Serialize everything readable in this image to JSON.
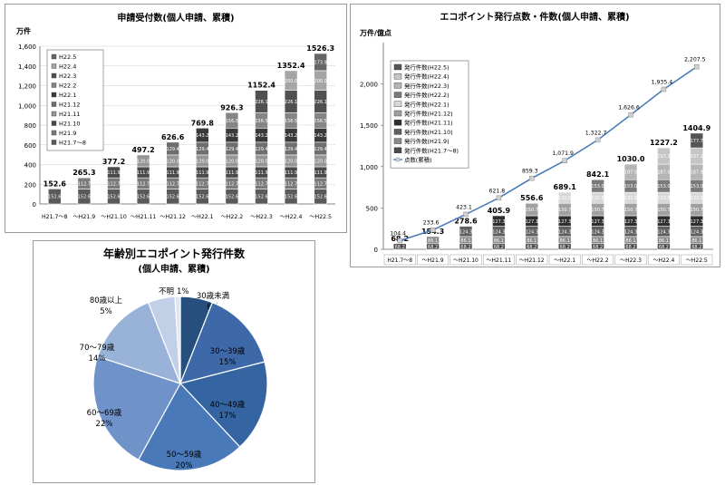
{
  "chart_data": [
    {
      "type": "bar",
      "title": "申請受付数(個人申請、累積)",
      "ylabel": "万件",
      "ylim": [
        0,
        1600
      ],
      "yticks": [
        "0",
        "200",
        "400",
        "600",
        "800",
        "1,000",
        "1,200",
        "1,400",
        "1,600"
      ],
      "ytick_values": [
        0,
        200,
        400,
        600,
        800,
        1000,
        1200,
        1400,
        1600
      ],
      "grid": true,
      "legend_position": "top-left",
      "categories": [
        "H21.7～8",
        "～H21.9",
        "～H21.10",
        "～H21.11",
        "～H21.12",
        "～H22.1",
        "～H22.2",
        "～H22.3",
        "～H22.4",
        "～H22.5"
      ],
      "series": [
        {
          "name": "H21.7～8",
          "color": "#5a5a5a",
          "values": [
            152.6,
            152.6,
            152.6,
            152.6,
            152.6,
            152.6,
            152.6,
            152.6,
            152.6,
            152.6
          ]
        },
        {
          "name": "H21.9",
          "color": "#7a7a7a",
          "values": [
            0,
            112.7,
            112.7,
            112.7,
            112.7,
            112.7,
            112.7,
            112.7,
            112.7,
            112.7
          ]
        },
        {
          "name": "H21.10",
          "color": "#4a4a4a",
          "values": [
            0,
            0,
            111.9,
            111.9,
            111.9,
            111.9,
            111.9,
            111.9,
            111.9,
            111.9
          ]
        },
        {
          "name": "H21.11",
          "color": "#959595",
          "values": [
            0,
            0,
            0,
            120.0,
            120.0,
            120.0,
            120.0,
            120.0,
            120.0,
            120.0
          ]
        },
        {
          "name": "H21.12",
          "color": "#6e6e6e",
          "values": [
            0,
            0,
            0,
            0,
            129.4,
            129.4,
            129.4,
            129.4,
            129.4,
            129.4
          ]
        },
        {
          "name": "H22.1",
          "color": "#3a3a3a",
          "values": [
            0,
            0,
            0,
            0,
            0,
            143.2,
            143.2,
            143.2,
            143.2,
            143.2
          ]
        },
        {
          "name": "H22.2",
          "color": "#858585",
          "values": [
            0,
            0,
            0,
            0,
            0,
            0,
            156.5,
            156.5,
            156.5,
            156.5
          ]
        },
        {
          "name": "H22.3",
          "color": "#505050",
          "values": [
            0,
            0,
            0,
            0,
            0,
            0,
            0,
            226.1,
            226.1,
            226.1
          ]
        },
        {
          "name": "H22.4",
          "color": "#a5a5a5",
          "values": [
            0,
            0,
            0,
            0,
            0,
            0,
            0,
            0,
            200.0,
            200.0
          ]
        },
        {
          "name": "H22.5",
          "color": "#666666",
          "values": [
            0,
            0,
            0,
            0,
            0,
            0,
            0,
            0,
            0,
            173.9
          ]
        }
      ],
      "totals": [
        "152.6",
        "265.3",
        "377.2",
        "497.2",
        "626.6",
        "769.8",
        "926.3",
        "1152.4",
        "1352.4",
        "1526.3"
      ]
    },
    {
      "type": "bar",
      "title": "エコポイント発行点数・件数(個人申請、累積)",
      "ylabel": "万件/億点",
      "ylim": [
        0,
        2500
      ],
      "yticks": [
        "0",
        "500",
        "1,000",
        "1,500",
        "2,000"
      ],
      "ytick_values": [
        0,
        500,
        1000,
        1500,
        2000
      ],
      "grid": false,
      "legend_position": "top-left",
      "categories": [
        "H21.7～8",
        "～H21.9",
        "～H21.10",
        "～H21.11",
        "～H21.12",
        "～H22.1",
        "～H22.2",
        "～H22.3",
        "～H22.4",
        "～H22.5"
      ],
      "series": [
        {
          "name": "発行件数(H21.7～8)",
          "color": "#4a4a4a",
          "values": [
            68.2,
            68.2,
            68.2,
            68.2,
            68.2,
            68.2,
            68.2,
            68.2,
            68.2,
            68.2
          ]
        },
        {
          "name": "発行件数(H21.9)",
          "color": "#8a8a8a",
          "values": [
            0,
            86.1,
            86.1,
            86.1,
            86.1,
            86.1,
            86.1,
            86.1,
            86.1,
            86.1
          ]
        },
        {
          "name": "発行件数(H21.10)",
          "color": "#5f5f5f",
          "values": [
            0,
            0,
            124.3,
            124.3,
            124.3,
            124.3,
            124.3,
            124.3,
            124.3,
            124.3
          ]
        },
        {
          "name": "発行件数(H21.11)",
          "color": "#2e2e2e",
          "values": [
            0,
            0,
            0,
            127.3,
            127.3,
            127.3,
            127.3,
            127.3,
            127.3,
            127.3
          ]
        },
        {
          "name": "発行件数(H21.12)",
          "color": "#a0a0a0",
          "values": [
            0,
            0,
            0,
            0,
            150.7,
            150.7,
            150.7,
            150.7,
            150.7,
            150.7
          ]
        },
        {
          "name": "発行件数(H22.1)",
          "color": "#d8d8d8",
          "values": [
            0,
            0,
            0,
            0,
            0,
            132.5,
            132.5,
            132.5,
            132.5,
            132.5
          ]
        },
        {
          "name": "発行件数(H22.2)",
          "color": "#7a7a7a",
          "values": [
            0,
            0,
            0,
            0,
            0,
            0,
            153.0,
            153.0,
            153.0,
            153.0
          ]
        },
        {
          "name": "発行件数(H22.3)",
          "color": "#b5b5b5",
          "values": [
            0,
            0,
            0,
            0,
            0,
            0,
            0,
            187.9,
            187.9,
            187.9
          ]
        },
        {
          "name": "発行件数(H22.4)",
          "color": "#c5c5c5",
          "values": [
            0,
            0,
            0,
            0,
            0,
            0,
            0,
            0,
            197.2,
            197.2
          ]
        },
        {
          "name": "発行件数(H22.5)",
          "color": "#555555",
          "values": [
            0,
            0,
            0,
            0,
            0,
            0,
            0,
            0,
            0,
            177.7
          ]
        }
      ],
      "totals": [
        "68.2",
        "154.3",
        "278.6",
        "405.9",
        "556.6",
        "689.1",
        "842.1",
        "1030.0",
        "1227.2",
        "1404.9"
      ],
      "line": {
        "name": "点数(累積)",
        "color": "#4a7ebb",
        "values": [
          104.4,
          233.6,
          423.1,
          621.8,
          859.3,
          1071.9,
          1322.7,
          1626.6,
          1935.4,
          2207.5
        ],
        "labels": [
          "104.4",
          "233.6",
          "423.1",
          "621.8",
          "859.3",
          "1,071.9",
          "1,322.7",
          "1,626.6",
          "1,935.4",
          "2,207.5"
        ]
      }
    },
    {
      "type": "pie",
      "title": "年齢別エコポイント発行件数",
      "subtitle": "(個人申請、累積)",
      "slices": [
        {
          "label": "30歳未満",
          "pct": 6,
          "pct_label": "6%",
          "color": "#264f7d"
        },
        {
          "label": "30～39歳",
          "pct": 15,
          "pct_label": "15%",
          "color": "#3e69a8"
        },
        {
          "label": "40～49歳",
          "pct": 17,
          "pct_label": "17%",
          "color": "#3465a2"
        },
        {
          "label": "50～59歳",
          "pct": 20,
          "pct_label": "20%",
          "color": "#4979b8"
        },
        {
          "label": "60～69歳",
          "pct": 22,
          "pct_label": "22%",
          "color": "#6f93c8"
        },
        {
          "label": "70～79歳",
          "pct": 14,
          "pct_label": "14%",
          "color": "#98b2d8"
        },
        {
          "label": "80歳以上",
          "pct": 5,
          "pct_label": "5%",
          "color": "#c1d0e7"
        },
        {
          "label": "不明",
          "pct": 1,
          "pct_label": "1%",
          "color": "#dde5f1"
        }
      ]
    }
  ]
}
